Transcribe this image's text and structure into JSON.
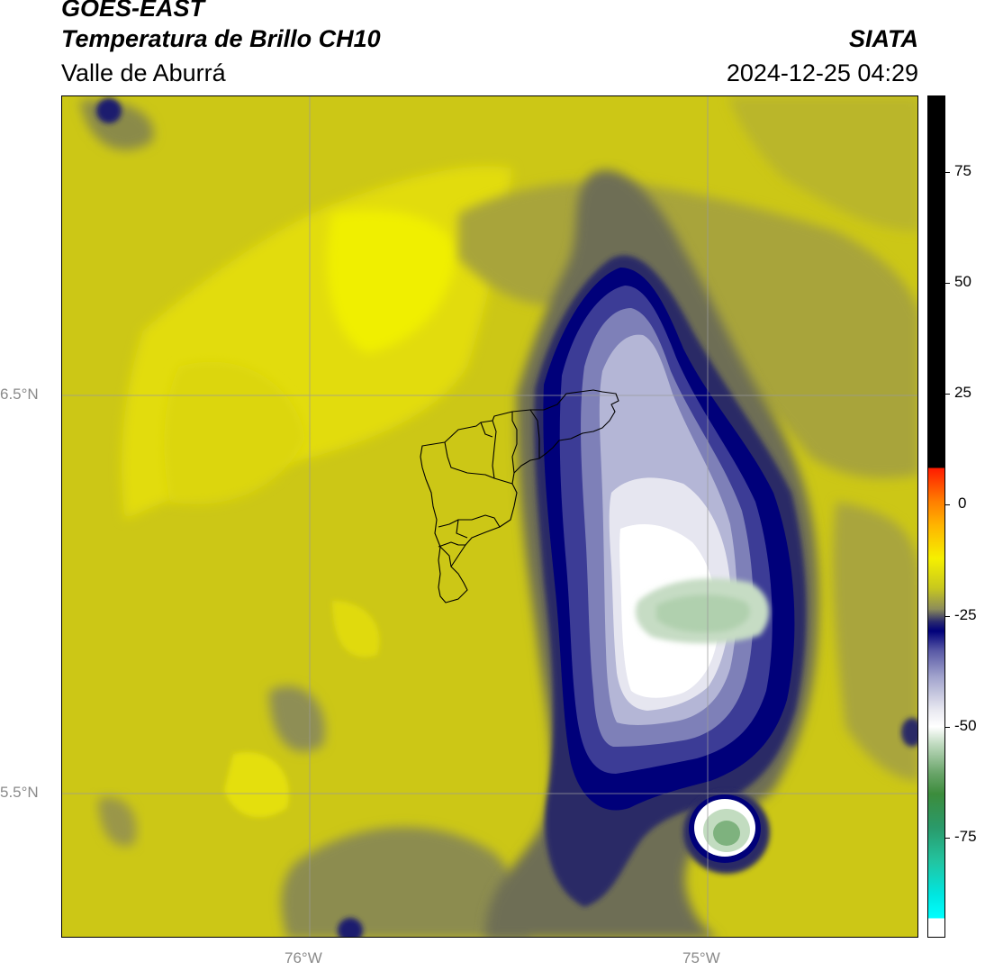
{
  "header": {
    "product": "GOES-EAST",
    "channel": "Temperatura de Brillo CH10",
    "region": "Valle de Aburrá",
    "agency": "SIATA",
    "timestamp": "2024-12-25 04:29"
  },
  "map": {
    "latitude_labels": [
      "6.5°N",
      "5.5°N"
    ],
    "longitude_labels": [
      "76°W",
      "75°W"
    ],
    "gridlines": true,
    "overlay": "municipality boundaries"
  },
  "colorbar": {
    "labels": [
      "75",
      "50",
      "25",
      "0",
      "-25",
      "-50",
      "-75"
    ],
    "colors": {
      "black": "#000000",
      "red": "#ff1a00",
      "orange": "#ff7a00",
      "yellow": "#f5f000",
      "olive": "#c8c81e",
      "navy": "#00007a",
      "white": "#ffffff",
      "green": "#3c8c3c",
      "cyan": "#00ffff"
    }
  }
}
